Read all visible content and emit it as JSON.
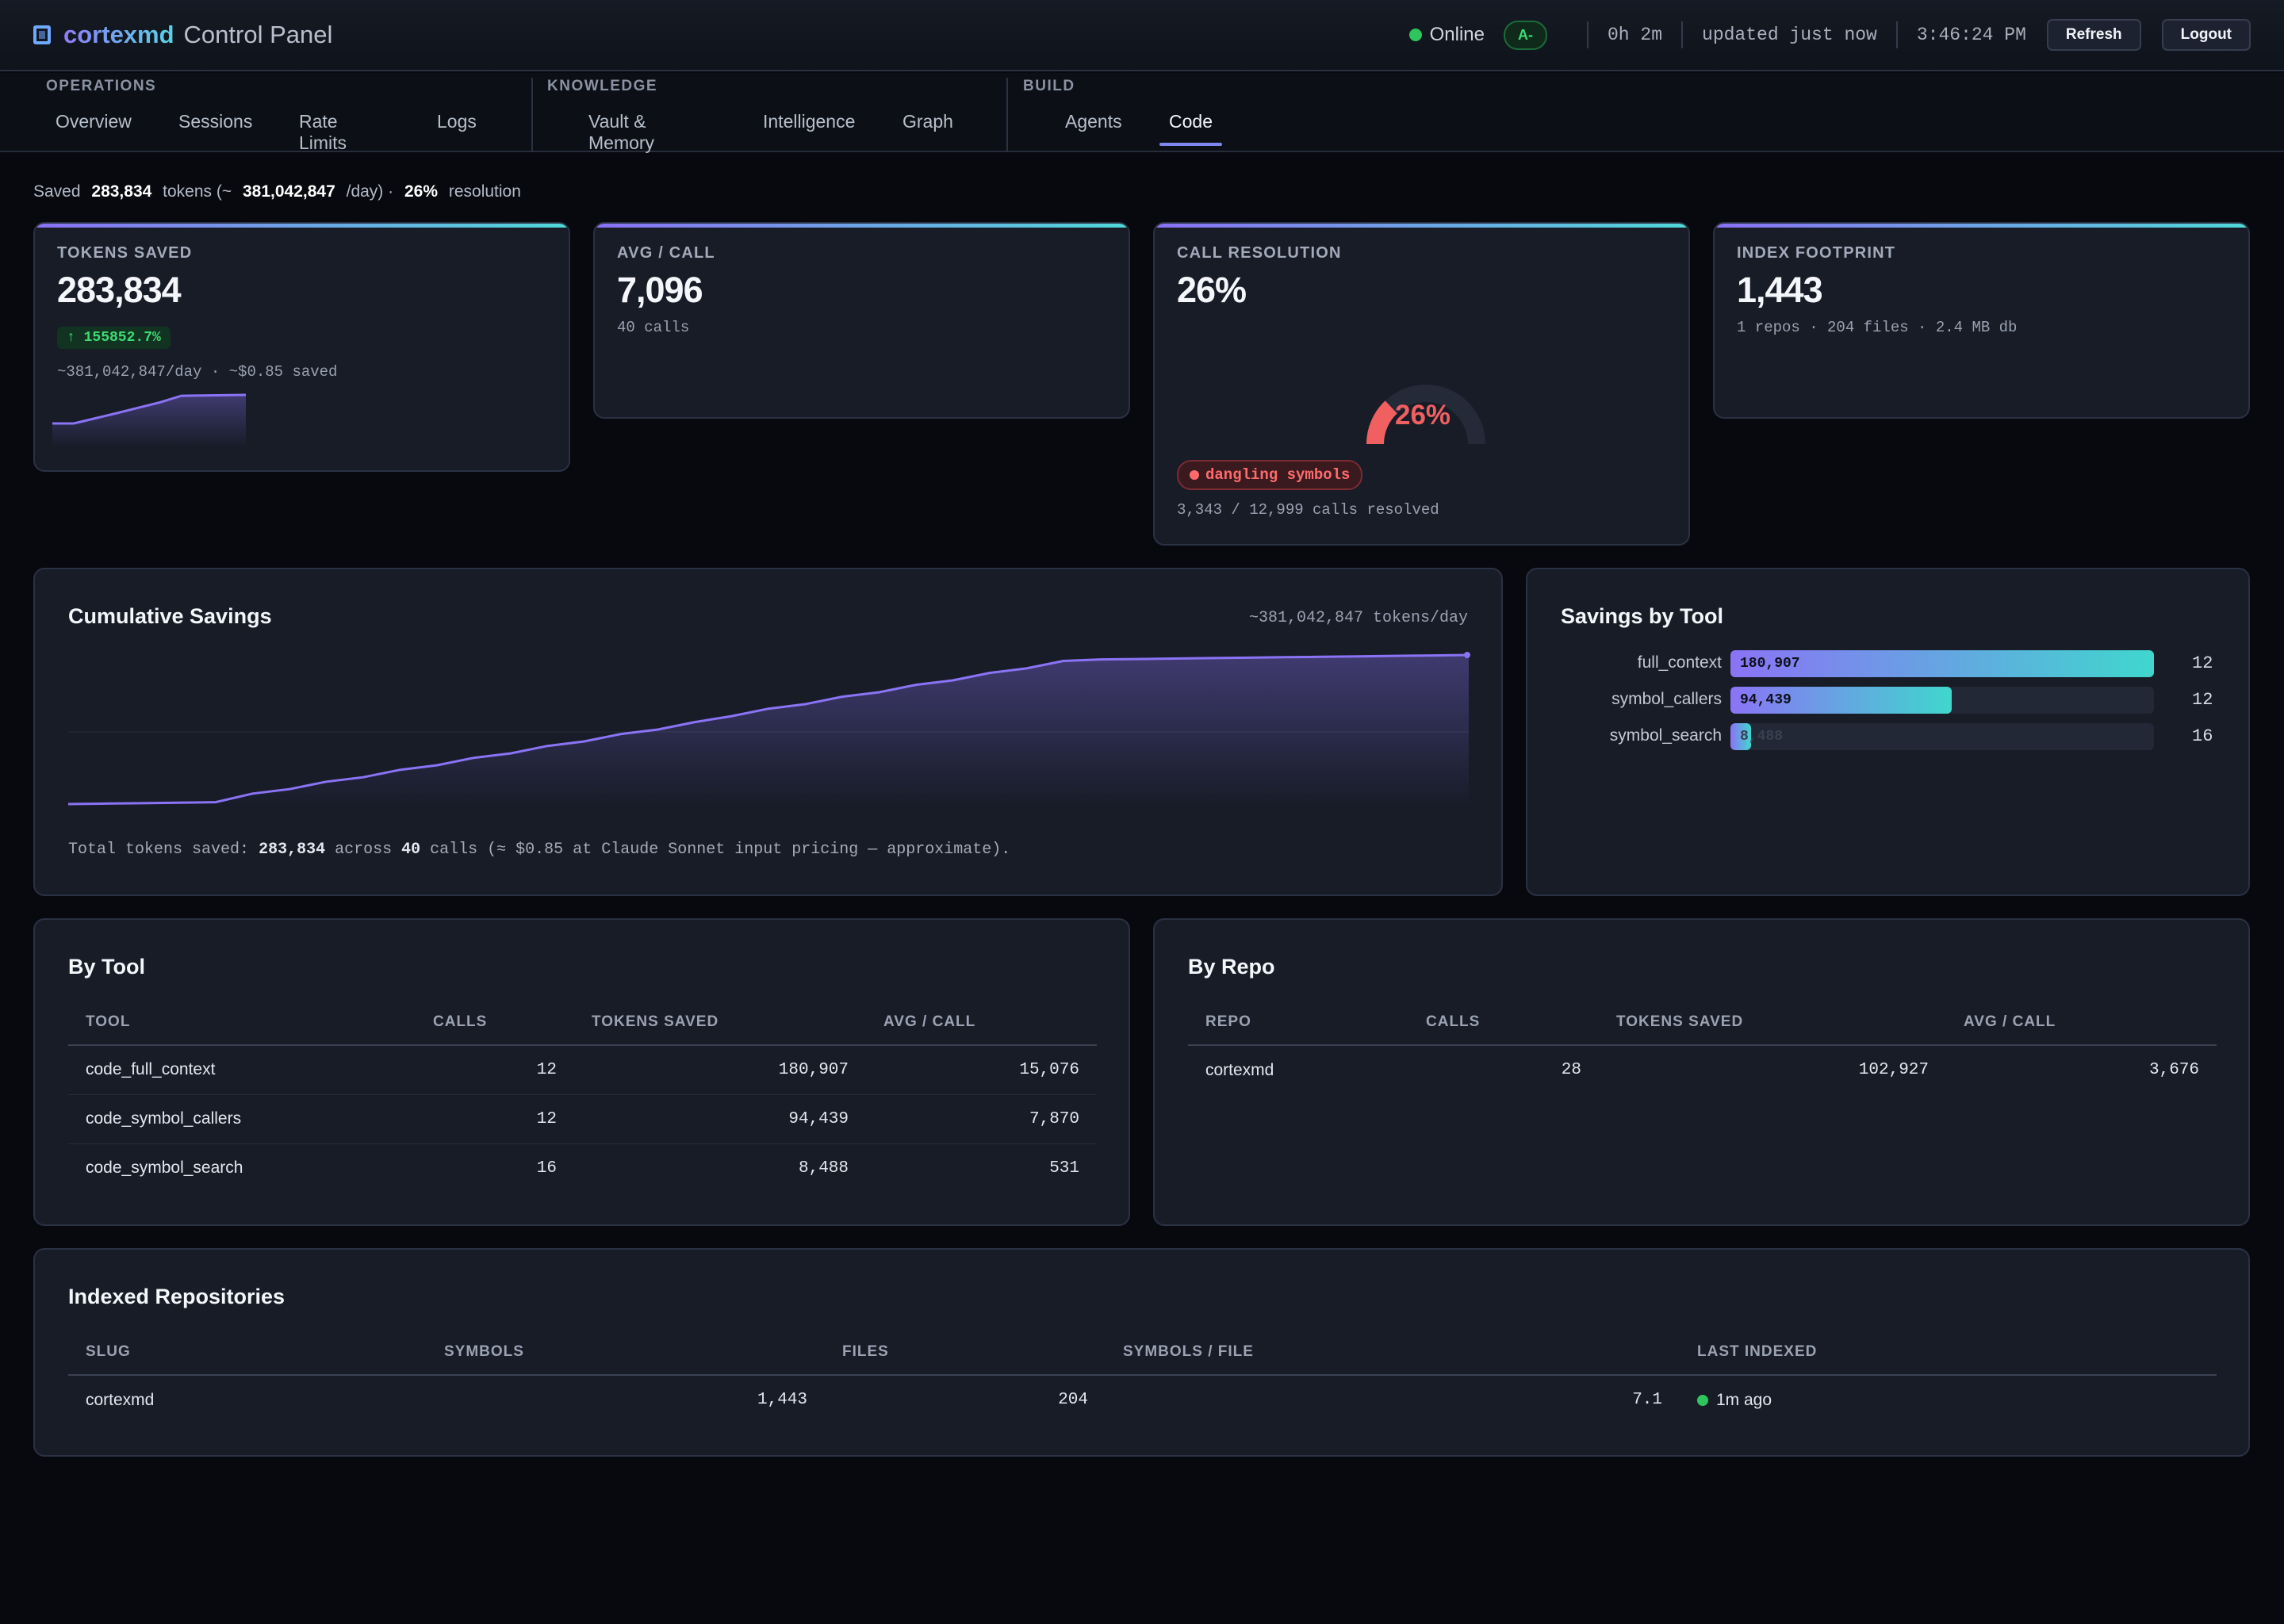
{
  "header": {
    "brand_name": "cortexmd",
    "brand_title": "Control Panel",
    "status": "Online",
    "grade": "A-",
    "uptime": "0h 2m",
    "updated": "updated just now",
    "clock": "3:46:24 PM",
    "refresh_label": "Refresh",
    "logout_label": "Logout"
  },
  "nav": {
    "groups": [
      {
        "title": "OPERATIONS",
        "tabs": [
          "Overview",
          "Sessions",
          "Rate Limits",
          "Logs"
        ]
      },
      {
        "title": "KNOWLEDGE",
        "tabs": [
          "Vault & Memory",
          "Intelligence",
          "Graph"
        ]
      },
      {
        "title": "BUILD",
        "tabs": [
          "Agents",
          "Code"
        ]
      }
    ],
    "active_tab": "Code"
  },
  "summary": {
    "prefix": "Saved",
    "tokens": "283,834",
    "mid": "tokens (~",
    "per_day": "381,042,847",
    "suffix": "/day) ·",
    "resolution": "26%",
    "resolution_label": "resolution"
  },
  "cards": {
    "tokens_saved": {
      "label": "TOKENS SAVED",
      "value": "283,834",
      "badge": "↑ 155852.7%",
      "sub": "~381,042,847/day · ~$0.85 saved",
      "sparkline": [
        0,
        0,
        0.18,
        0.36,
        0.55,
        0.74,
        0.97,
        0.98,
        0.99,
        1
      ]
    },
    "avg_call": {
      "label": "AVG / CALL",
      "value": "7,096",
      "sub": "40 calls"
    },
    "call_resolution": {
      "label": "CALL RESOLUTION",
      "value": "26%",
      "gauge_text": "26%",
      "gauge_fraction": 0.26,
      "badge": "dangling symbols",
      "sub": "3,343 / 12,999 calls resolved"
    },
    "index_footprint": {
      "label": "INDEX FOOTPRINT",
      "value": "1,443",
      "sub": "1 repos · 204 files · 2.4 MB db"
    }
  },
  "cumulative": {
    "title": "Cumulative Savings",
    "rate": "~381,042,847 tokens/day",
    "footer_prefix": "Total tokens saved:",
    "footer_tokens": "283,834",
    "footer_mid": "across",
    "footer_calls": "40",
    "footer_suffix": "calls (≈ $0.85 at Claude Sonnet input pricing — approximate).",
    "series": [
      0.0,
      0.003,
      0.006,
      0.009,
      0.013,
      0.07,
      0.1,
      0.15,
      0.18,
      0.23,
      0.26,
      0.31,
      0.34,
      0.39,
      0.42,
      0.47,
      0.5,
      0.55,
      0.59,
      0.64,
      0.67,
      0.72,
      0.75,
      0.8,
      0.83,
      0.88,
      0.91,
      0.96,
      0.97,
      0.973,
      0.976,
      0.979,
      0.982,
      0.985,
      0.988,
      0.991,
      0.994,
      0.997,
      1.0
    ]
  },
  "savings_by_tool": {
    "title": "Savings by Tool",
    "max": 180907,
    "items": [
      {
        "name": "full_context",
        "value": 180907,
        "label": "180,907",
        "count": "12"
      },
      {
        "name": "symbol_callers",
        "value": 94439,
        "label": "94,439",
        "count": "12"
      },
      {
        "name": "symbol_search",
        "value": 8488,
        "label": "8,488",
        "count": "16"
      }
    ]
  },
  "by_tool": {
    "title": "By Tool",
    "columns": [
      "TOOL",
      "CALLS",
      "TOKENS SAVED",
      "AVG / CALL"
    ],
    "rows": [
      [
        "code_full_context",
        "12",
        "180,907",
        "15,076"
      ],
      [
        "code_symbol_callers",
        "12",
        "94,439",
        "7,870"
      ],
      [
        "code_symbol_search",
        "16",
        "8,488",
        "531"
      ]
    ]
  },
  "by_repo": {
    "title": "By Repo",
    "columns": [
      "REPO",
      "CALLS",
      "TOKENS SAVED",
      "AVG / CALL"
    ],
    "rows": [
      [
        "cortexmd",
        "28",
        "102,927",
        "3,676"
      ]
    ]
  },
  "indexed_repos": {
    "title": "Indexed Repositories",
    "columns": [
      "SLUG",
      "SYMBOLS",
      "FILES",
      "SYMBOLS / FILE",
      "LAST INDEXED"
    ],
    "rows": [
      [
        "cortexmd",
        "1,443",
        "204",
        "7.1",
        "1m ago"
      ]
    ]
  },
  "colors": {
    "accent": "#8b73f6",
    "accent2": "#3fd7cd",
    "ok": "#2ec55c",
    "warn": "#f06061"
  }
}
